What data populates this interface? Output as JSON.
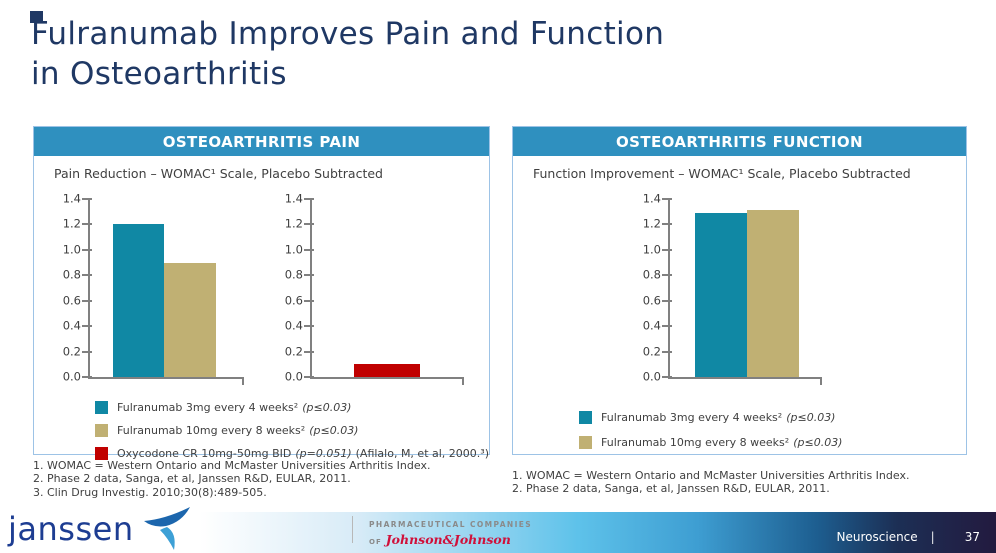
{
  "slide": {
    "title_line1": "Fulranumab Improves Pain and Function",
    "title_line2": "in Osteoarthritis"
  },
  "colors": {
    "title_navy": "#1F3864",
    "panel_header_bg": "#2F90BF",
    "panel_border": "#9DC3E6",
    "bar_teal": "#1088A4",
    "bar_tan": "#C0B073",
    "bar_red": "#C00000",
    "axis_gray": "#808080",
    "footer_dark": "#231a3f",
    "jnj_red": "#d0103a"
  },
  "panels": {
    "pain": {
      "header": "OSTEOARTHRITIS PAIN",
      "subtitle": "Pain Reduction – WOMAC¹ Scale, Placebo Subtracted",
      "legend": [
        {
          "label": "Fulranumab 3mg every 4 weeks²",
          "stat": "(p≤0.03)",
          "suffix": "",
          "color": "#1088A4"
        },
        {
          "label": "Fulranumab 10mg every 8 weeks²",
          "stat": "(p≤0.03)",
          "suffix": "",
          "color": "#C0B073"
        },
        {
          "label": "Oxycodone CR 10mg-50mg BID",
          "stat": "(p=0.051)",
          "suffix": "(Afilalo, M, et al, 2000.³)",
          "color": "#C00000"
        }
      ],
      "footnotes": [
        "1. WOMAC = Western Ontario and McMaster Universities Arthritis Index.",
        "2. Phase 2 data, Sanga, et al, Janssen R&D, EULAR, 2011.",
        "3. Clin Drug Investig. 2010;30(8):489-505."
      ]
    },
    "function": {
      "header": "OSTEOARTHRITIS FUNCTION",
      "subtitle": "Function Improvement – WOMAC¹ Scale, Placebo Subtracted",
      "legend": [
        {
          "label": "Fulranumab 3mg every 4 weeks²",
          "stat": "(p≤0.03)",
          "suffix": "",
          "color": "#1088A4"
        },
        {
          "label": "Fulranumab 10mg every 8 weeks²",
          "stat": "(p≤0.03)",
          "suffix": "",
          "color": "#C0B073"
        }
      ],
      "footnotes": [
        "1. WOMAC = Western Ontario and McMaster Universities Arthritis Index.",
        "2. Phase 2 data, Sanga, et al, Janssen R&D, EULAR, 2011."
      ]
    }
  },
  "chart_data": [
    {
      "type": "bar",
      "panel": "OSTEOARTHRITIS PAIN",
      "title": "Pain Reduction – WOMAC¹ Scale, Placebo Subtracted",
      "categories": [
        "Fulranumab 3mg every 4 weeks²",
        "Fulranumab 10mg every 8 weeks²"
      ],
      "values": [
        1.2,
        0.9
      ],
      "colors": [
        "#1088A4",
        "#C0B073"
      ],
      "ylim": [
        0,
        1.4
      ],
      "yticks": [
        "0.0",
        "0.2",
        "0.4",
        "0.6",
        "0.8",
        "1.0",
        "1.2",
        "1.4"
      ],
      "grid": false,
      "legend_position": "below"
    },
    {
      "type": "bar",
      "panel": "OSTEOARTHRITIS PAIN",
      "title": "Pain Reduction – WOMAC¹ Scale, Placebo Subtracted",
      "categories": [
        "Oxycodone CR 10mg-50mg BID"
      ],
      "values": [
        0.1
      ],
      "colors": [
        "#C00000"
      ],
      "ylim": [
        0,
        1.4
      ],
      "yticks": [
        "0.0",
        "0.2",
        "0.4",
        "0.6",
        "0.8",
        "1.0",
        "1.2",
        "1.4"
      ],
      "grid": false,
      "legend_position": "below"
    },
    {
      "type": "bar",
      "panel": "OSTEOARTHRITIS FUNCTION",
      "title": "Function Improvement – WOMAC¹ Scale, Placebo Subtracted",
      "categories": [
        "Fulranumab 3mg every 4 weeks²",
        "Fulranumab 10mg every 8 weeks²"
      ],
      "values": [
        1.29,
        1.31
      ],
      "colors": [
        "#1088A4",
        "#C0B073"
      ],
      "ylim": [
        0,
        1.4
      ],
      "yticks": [
        "0.0",
        "0.2",
        "0.4",
        "0.6",
        "0.8",
        "1.0",
        "1.2",
        "1.4"
      ],
      "grid": false,
      "legend_position": "below"
    }
  ],
  "footer": {
    "brand": "janssen",
    "tagline_line1": "PHARMACEUTICAL COMPANIES",
    "tagline_of": "OF",
    "tagline_line2": "Johnson&Johnson",
    "section": "Neuroscience",
    "separator": "|",
    "page_number": "37"
  }
}
